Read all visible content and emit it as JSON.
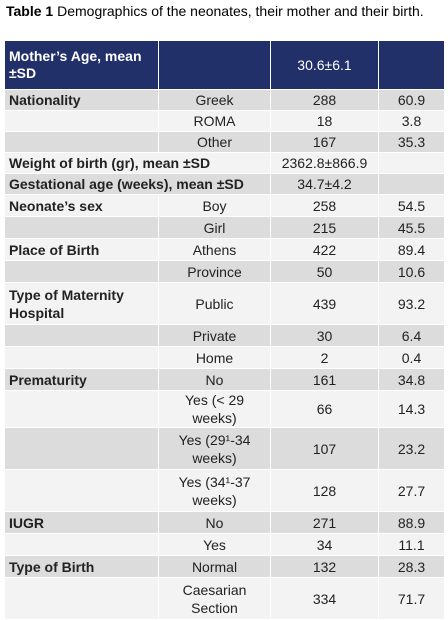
{
  "caption": {
    "label": "Table 1",
    "text": " Demographics of the neonates, their mother and their birth."
  },
  "header": {
    "label": "Mother’s Age, mean ±SD",
    "value": "30.6±6.1"
  },
  "rows": [
    {
      "label": "Nationality",
      "category": "Greek",
      "n": "288",
      "pct": "60.9"
    },
    {
      "label": "",
      "category": "ROMA",
      "n": "18",
      "pct": "3.8"
    },
    {
      "label": "",
      "category": "Other",
      "n": "167",
      "pct": "35.3"
    },
    {
      "label": "Weight of birth (gr), mean ±SD",
      "category": "",
      "n": "2362.8±866.9",
      "pct": ""
    },
    {
      "label": "Gestational age (weeks), mean ±SD",
      "category": "",
      "n": "34.7±4.2",
      "pct": ""
    },
    {
      "label": "Neonate’s sex",
      "category": "Boy",
      "n": "258",
      "pct": "54.5"
    },
    {
      "label": "",
      "category": "Girl",
      "n": "215",
      "pct": "45.5"
    },
    {
      "label": "Place of Birth",
      "category": "Athens",
      "n": "422",
      "pct": "89.4"
    },
    {
      "label": "",
      "category": "Province",
      "n": "50",
      "pct": "10.6"
    },
    {
      "label": "Type of Maternity Hospital",
      "category": "Public",
      "n": "439",
      "pct": "93.2"
    },
    {
      "label": "",
      "category": "Private",
      "n": "30",
      "pct": "6.4"
    },
    {
      "label": "",
      "category": "Home",
      "n": "2",
      "pct": "0.4"
    },
    {
      "label": "Prematurity",
      "category": "No",
      "n": "161",
      "pct": "34.8"
    },
    {
      "label": "",
      "category": "Yes (< 29 weeks)",
      "n": "66",
      "pct": "14.3"
    },
    {
      "label": "",
      "category": "Yes (29¹-34 weeks)",
      "n": "107",
      "pct": "23.2"
    },
    {
      "label": "",
      "category": "Yes (34¹-37 weeks)",
      "n": "128",
      "pct": "27.7"
    },
    {
      "label": "IUGR",
      "category": "No",
      "n": "271",
      "pct": "88.9"
    },
    {
      "label": "",
      "category": "Yes",
      "n": "34",
      "pct": "11.1"
    },
    {
      "label": "Type of Birth",
      "category": "Normal",
      "n": "132",
      "pct": "28.3"
    },
    {
      "label": "",
      "category": "Caesarian Section",
      "n": "334",
      "pct": "71.7"
    }
  ],
  "colors": {
    "header_bg": "#22306a",
    "row_dark": "#dcdcdc",
    "row_light": "#f3f3f3"
  }
}
